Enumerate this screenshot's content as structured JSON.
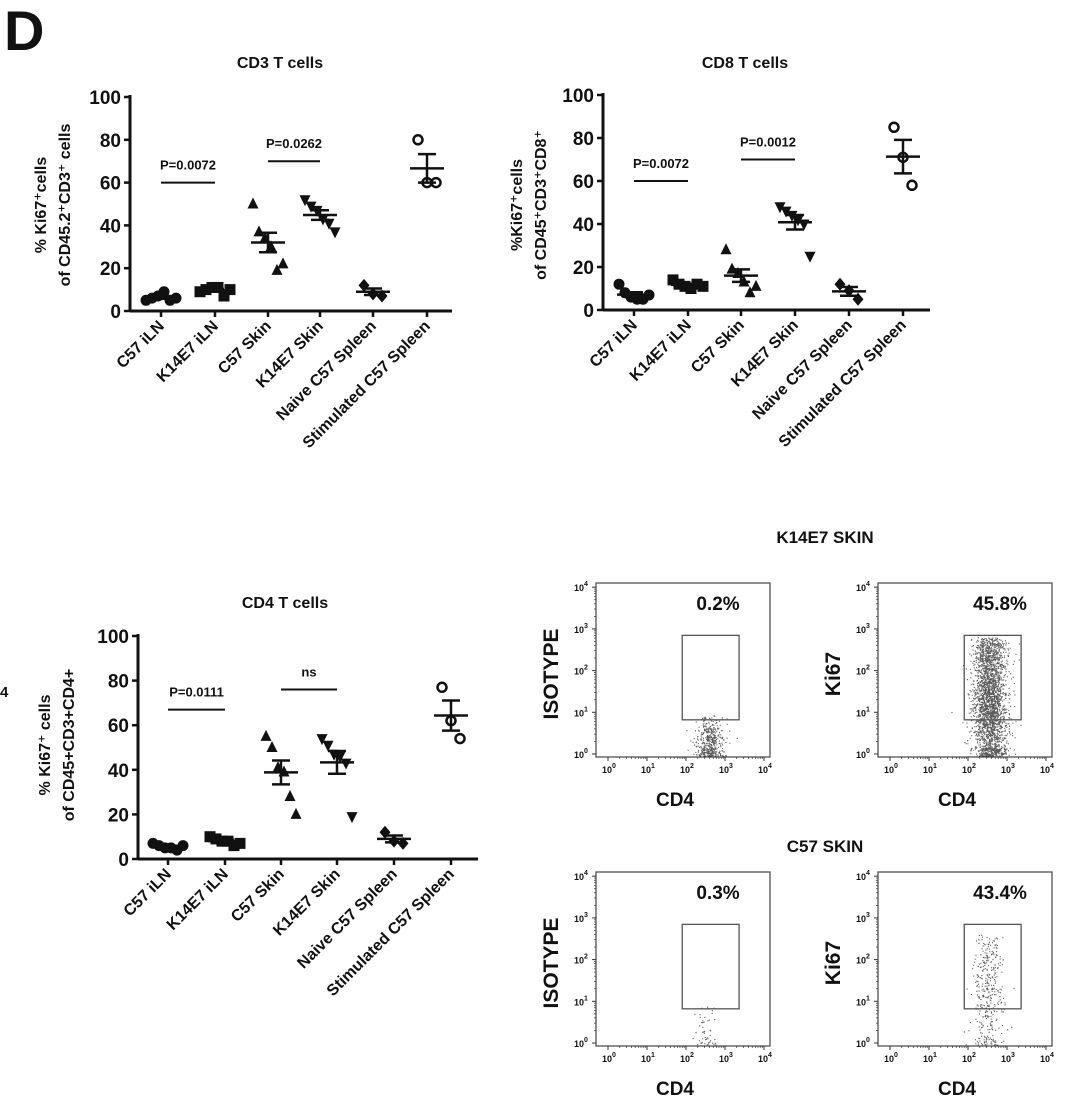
{
  "panel_letter": "D",
  "stray_label": "4",
  "chart_data": [
    {
      "type": "scatter",
      "title": "CD3 T cells",
      "ylabel": [
        "% Ki67⁺cells",
        "of CD45.2⁺CD3⁺ cells"
      ],
      "ylim": [
        0,
        100
      ],
      "yticks": [
        "0",
        "20",
        "40",
        "60",
        "80",
        "100"
      ],
      "categories": [
        "C57 iLN",
        "K14E7 iLN",
        "C57 Skin",
        "K14E7 Skin",
        "Naive C57 Spleen",
        "Stimulated C57 Spleen"
      ],
      "markers": [
        "circle",
        "square",
        "triangle-up",
        "triangle-down",
        "diamond",
        "open-circle"
      ],
      "values": [
        [
          5,
          6,
          7,
          9,
          5,
          6
        ],
        [
          9,
          10,
          11,
          11,
          7,
          10
        ],
        [
          50,
          37,
          34,
          30,
          19,
          22
        ],
        [
          52,
          49,
          47,
          43,
          41,
          37
        ],
        [
          12,
          8,
          7
        ],
        [
          80,
          60,
          60
        ]
      ],
      "significance": [
        {
          "label": "P=0.0072",
          "from": 0,
          "to": 1,
          "y": 60
        },
        {
          "label": "P=0.0262",
          "from": 2,
          "to": 3,
          "y": 70
        }
      ]
    },
    {
      "type": "scatter",
      "title": "CD8 T cells",
      "ylabel": [
        "%Ki67⁺cells",
        "of CD45⁺CD3⁺CD8⁺"
      ],
      "ylim": [
        0,
        100
      ],
      "yticks": [
        "0",
        "20",
        "40",
        "60",
        "80",
        "100"
      ],
      "categories": [
        "C57 iLN",
        "K14E7 iLN",
        "C57 Skin",
        "K14E7 Skin",
        "Naive C57 Spleen",
        "Stimulated C57 Spleen"
      ],
      "markers": [
        "circle",
        "square",
        "triangle-up",
        "triangle-down",
        "diamond",
        "open-circle"
      ],
      "values": [
        [
          12,
          8,
          6,
          5,
          5,
          7
        ],
        [
          14,
          12,
          11,
          10,
          12,
          11
        ],
        [
          28,
          19,
          17,
          13,
          8,
          11
        ],
        [
          48,
          46,
          44,
          42,
          40,
          25
        ],
        [
          12,
          9,
          5
        ],
        [
          85,
          71,
          58
        ]
      ],
      "significance": [
        {
          "label": "P=0.0072",
          "from": 0,
          "to": 1,
          "y": 60
        },
        {
          "label": "P=0.0012",
          "from": 2,
          "to": 3,
          "y": 70
        }
      ]
    },
    {
      "type": "scatter",
      "title": "CD4 T cells",
      "ylabel": [
        "% Ki67⁺ cells",
        "of CD45+CD3+CD4+"
      ],
      "ylim": [
        0,
        100
      ],
      "yticks": [
        "0",
        "20",
        "40",
        "60",
        "80",
        "100"
      ],
      "categories": [
        "C57 iLN",
        "K14E7 iLN",
        "C57 Skin",
        "K14E7 Skin",
        "Naive C57 Spleen",
        "Stimulated C57 Spleen"
      ],
      "markers": [
        "circle",
        "square",
        "triangle-up",
        "triangle-down",
        "diamond",
        "open-circle"
      ],
      "values": [
        [
          7,
          6,
          5,
          5,
          4,
          6
        ],
        [
          10,
          9,
          8,
          8,
          6,
          7
        ],
        [
          55,
          50,
          41,
          39,
          28,
          20
        ],
        [
          54,
          51,
          47,
          46,
          43,
          19
        ],
        [
          12,
          8,
          7
        ],
        [
          77,
          62,
          54
        ]
      ],
      "significance": [
        {
          "label": "P=0.0111",
          "from": 0,
          "to": 1,
          "y": 67
        },
        {
          "label": "ns",
          "from": 2,
          "to": 3,
          "y": 76
        }
      ]
    }
  ],
  "flow": {
    "groups": [
      {
        "title": "K14E7 SKIN",
        "plots": [
          {
            "ylabel": "ISOTYPE",
            "xlabel": "CD4",
            "percent": "0.2%"
          },
          {
            "ylabel": "Ki67",
            "xlabel": "CD4",
            "percent": "45.8%"
          }
        ]
      },
      {
        "title": "C57 SKIN",
        "plots": [
          {
            "ylabel": "ISOTYPE",
            "xlabel": "CD4",
            "percent": "0.3%"
          },
          {
            "ylabel": "Ki67",
            "xlabel": "CD4",
            "percent": "43.4%"
          }
        ]
      }
    ],
    "axis_scale": "log",
    "tick_base": "10",
    "tick_exponents": [
      "0",
      "1",
      "2",
      "3",
      "4"
    ],
    "gate": {
      "x": [
        80,
        2300
      ],
      "y": [
        6.6,
        700
      ]
    }
  }
}
